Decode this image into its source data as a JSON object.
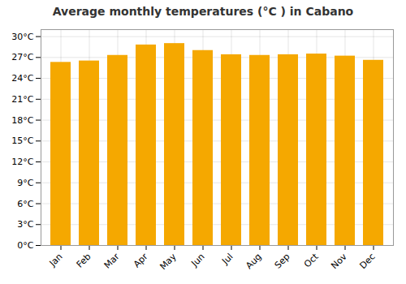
{
  "chart_data": {
    "type": "bar",
    "title": "Average monthly temperatures (°C ) in Cabano",
    "categories": [
      "Jan",
      "Feb",
      "Mar",
      "Apr",
      "May",
      "Jun",
      "Jul",
      "Aug",
      "Sep",
      "Oct",
      "Nov",
      "Dec"
    ],
    "values": [
      26.3,
      26.5,
      27.3,
      28.8,
      29.0,
      28.0,
      27.4,
      27.3,
      27.4,
      27.5,
      27.2,
      26.6
    ],
    "color": "#F5A800",
    "ylim": [
      0,
      31
    ],
    "yticks": [
      {
        "value": 0,
        "label": "0°C"
      },
      {
        "value": 3,
        "label": "3°C"
      },
      {
        "value": 6,
        "label": "6°C"
      },
      {
        "value": 9,
        "label": "9°C"
      },
      {
        "value": 12,
        "label": "12°C"
      },
      {
        "value": 15,
        "label": "15°C"
      },
      {
        "value": 18,
        "label": "18°C"
      },
      {
        "value": 21,
        "label": "21°C"
      },
      {
        "value": 24,
        "label": "24°C"
      },
      {
        "value": 27,
        "label": "27°C"
      },
      {
        "value": 30,
        "label": "30°C"
      }
    ],
    "grid": true
  }
}
